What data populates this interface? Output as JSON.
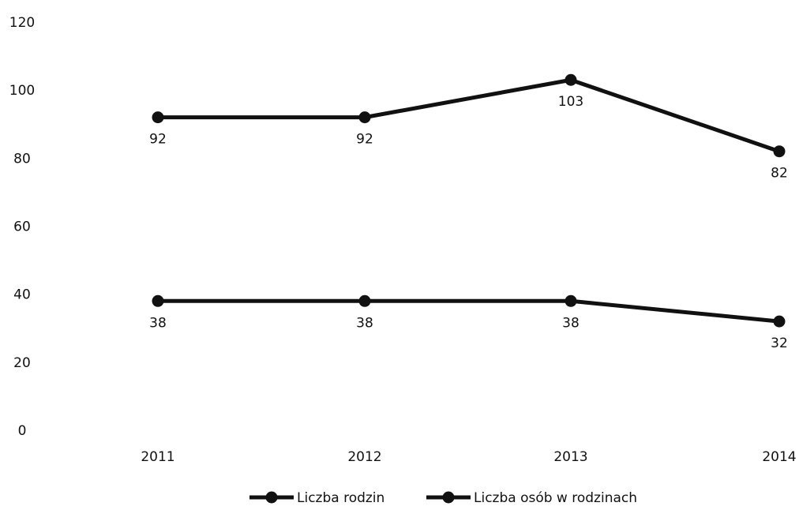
{
  "chart_data": {
    "type": "line",
    "title": "",
    "xlabel": "",
    "ylabel": "",
    "categories": [
      "2011",
      "2012",
      "2013",
      "2014"
    ],
    "ylim": [
      0,
      120
    ],
    "yticks": [
      0,
      20,
      40,
      60,
      80,
      100,
      120
    ],
    "grid": false,
    "legend_position": "bottom",
    "series": [
      {
        "name": "Liczba rodzin",
        "values": [
          38,
          38,
          38,
          32
        ],
        "color": "#111111",
        "label_position": "below"
      },
      {
        "name": "Liczba osób w rodzinach",
        "values": [
          92,
          92,
          103,
          82
        ],
        "color": "#111111",
        "label_position": "below"
      }
    ]
  }
}
